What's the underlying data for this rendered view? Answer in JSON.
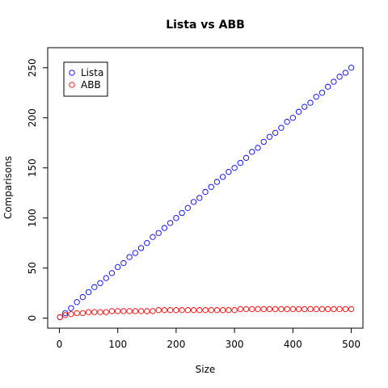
{
  "chart_data": {
    "type": "scatter",
    "title": "Lista vs ABB",
    "xlabel": "Size",
    "ylabel": "Comparisons",
    "xlim": [
      -20,
      520
    ],
    "ylim": [
      -10,
      270
    ],
    "xticks": [
      0,
      100,
      200,
      300,
      400,
      500
    ],
    "yticks": [
      0,
      50,
      100,
      150,
      200,
      250
    ],
    "grid": false,
    "legend_position": "top-left",
    "marker": "open-circle",
    "series": [
      {
        "name": "Lista",
        "color": "#0000ff",
        "x": [
          1,
          10,
          20,
          30,
          40,
          50,
          60,
          70,
          80,
          90,
          100,
          110,
          120,
          130,
          140,
          150,
          160,
          170,
          180,
          190,
          200,
          210,
          220,
          230,
          240,
          250,
          260,
          270,
          280,
          290,
          300,
          310,
          320,
          330,
          340,
          350,
          360,
          370,
          380,
          390,
          400,
          410,
          420,
          430,
          440,
          450,
          460,
          470,
          480,
          490,
          500
        ],
        "y": [
          1,
          5,
          10,
          16,
          21,
          26,
          31,
          35,
          40,
          45,
          51,
          55,
          61,
          65,
          70,
          75,
          81,
          85,
          90,
          95,
          100,
          105,
          110,
          116,
          120,
          126,
          131,
          136,
          141,
          146,
          150,
          155,
          160,
          166,
          170,
          176,
          181,
          185,
          190,
          196,
          200,
          206,
          211,
          215,
          221,
          225,
          231,
          236,
          241,
          245,
          250
        ]
      },
      {
        "name": "ABB",
        "color": "#ff0000",
        "x": [
          1,
          10,
          20,
          30,
          40,
          50,
          60,
          70,
          80,
          90,
          100,
          110,
          120,
          130,
          140,
          150,
          160,
          170,
          180,
          190,
          200,
          210,
          220,
          230,
          240,
          250,
          260,
          270,
          280,
          290,
          300,
          310,
          320,
          330,
          340,
          350,
          360,
          370,
          380,
          390,
          400,
          410,
          420,
          430,
          440,
          450,
          460,
          470,
          480,
          490,
          500
        ],
        "y": [
          1,
          3,
          4,
          5,
          5,
          6,
          6,
          6,
          6,
          7,
          7,
          7,
          7,
          7,
          7,
          7,
          7,
          8,
          8,
          8,
          8,
          8,
          8,
          8,
          8,
          8,
          8,
          8,
          8,
          8,
          8,
          9,
          9,
          9,
          9,
          9,
          9,
          9,
          9,
          9,
          9,
          9,
          9,
          9,
          9,
          9,
          9,
          9,
          9,
          9,
          9
        ]
      }
    ]
  }
}
